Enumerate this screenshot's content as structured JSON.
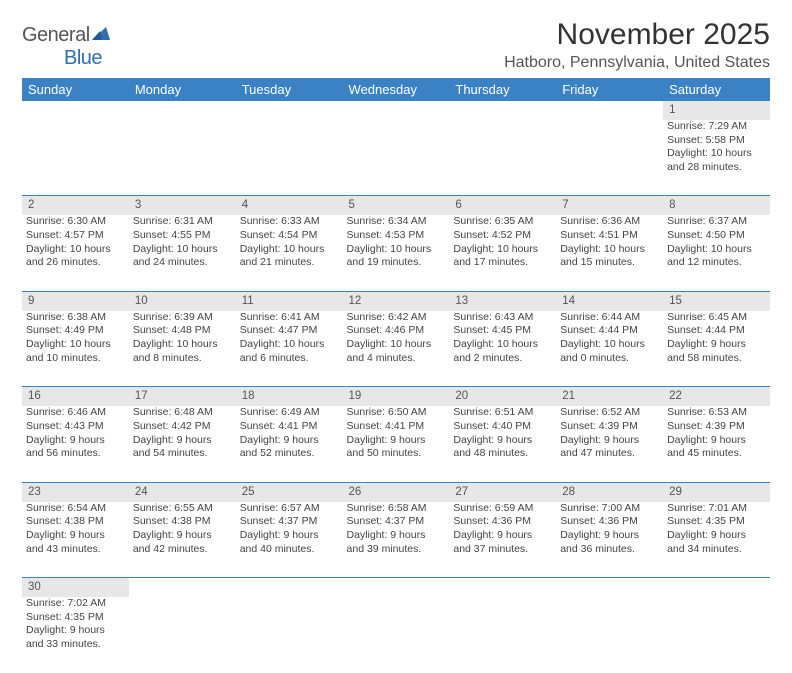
{
  "logo": {
    "text_general": "General",
    "text_blue": "Blue"
  },
  "title": "November 2025",
  "location": "Hatboro, Pennsylvania, United States",
  "colors": {
    "header_bg": "#3b82c4",
    "header_text": "#ffffff",
    "daynum_bg": "#e7e7e7",
    "row_divider": "#3b82c4",
    "body_text": "#444444",
    "title_text": "#333333",
    "location_text": "#555555",
    "logo_general": "#555555",
    "logo_blue": "#2f6fae",
    "page_bg": "#ffffff"
  },
  "calendar": {
    "day_headers": [
      "Sunday",
      "Monday",
      "Tuesday",
      "Wednesday",
      "Thursday",
      "Friday",
      "Saturday"
    ],
    "first_weekday_index": 6,
    "num_days": 30,
    "days": {
      "1": {
        "sunrise": "7:29 AM",
        "sunset": "5:58 PM",
        "daylight": "10 hours and 28 minutes."
      },
      "2": {
        "sunrise": "6:30 AM",
        "sunset": "4:57 PM",
        "daylight": "10 hours and 26 minutes."
      },
      "3": {
        "sunrise": "6:31 AM",
        "sunset": "4:55 PM",
        "daylight": "10 hours and 24 minutes."
      },
      "4": {
        "sunrise": "6:33 AM",
        "sunset": "4:54 PM",
        "daylight": "10 hours and 21 minutes."
      },
      "5": {
        "sunrise": "6:34 AM",
        "sunset": "4:53 PM",
        "daylight": "10 hours and 19 minutes."
      },
      "6": {
        "sunrise": "6:35 AM",
        "sunset": "4:52 PM",
        "daylight": "10 hours and 17 minutes."
      },
      "7": {
        "sunrise": "6:36 AM",
        "sunset": "4:51 PM",
        "daylight": "10 hours and 15 minutes."
      },
      "8": {
        "sunrise": "6:37 AM",
        "sunset": "4:50 PM",
        "daylight": "10 hours and 12 minutes."
      },
      "9": {
        "sunrise": "6:38 AM",
        "sunset": "4:49 PM",
        "daylight": "10 hours and 10 minutes."
      },
      "10": {
        "sunrise": "6:39 AM",
        "sunset": "4:48 PM",
        "daylight": "10 hours and 8 minutes."
      },
      "11": {
        "sunrise": "6:41 AM",
        "sunset": "4:47 PM",
        "daylight": "10 hours and 6 minutes."
      },
      "12": {
        "sunrise": "6:42 AM",
        "sunset": "4:46 PM",
        "daylight": "10 hours and 4 minutes."
      },
      "13": {
        "sunrise": "6:43 AM",
        "sunset": "4:45 PM",
        "daylight": "10 hours and 2 minutes."
      },
      "14": {
        "sunrise": "6:44 AM",
        "sunset": "4:44 PM",
        "daylight": "10 hours and 0 minutes."
      },
      "15": {
        "sunrise": "6:45 AM",
        "sunset": "4:44 PM",
        "daylight": "9 hours and 58 minutes."
      },
      "16": {
        "sunrise": "6:46 AM",
        "sunset": "4:43 PM",
        "daylight": "9 hours and 56 minutes."
      },
      "17": {
        "sunrise": "6:48 AM",
        "sunset": "4:42 PM",
        "daylight": "9 hours and 54 minutes."
      },
      "18": {
        "sunrise": "6:49 AM",
        "sunset": "4:41 PM",
        "daylight": "9 hours and 52 minutes."
      },
      "19": {
        "sunrise": "6:50 AM",
        "sunset": "4:41 PM",
        "daylight": "9 hours and 50 minutes."
      },
      "20": {
        "sunrise": "6:51 AM",
        "sunset": "4:40 PM",
        "daylight": "9 hours and 48 minutes."
      },
      "21": {
        "sunrise": "6:52 AM",
        "sunset": "4:39 PM",
        "daylight": "9 hours and 47 minutes."
      },
      "22": {
        "sunrise": "6:53 AM",
        "sunset": "4:39 PM",
        "daylight": "9 hours and 45 minutes."
      },
      "23": {
        "sunrise": "6:54 AM",
        "sunset": "4:38 PM",
        "daylight": "9 hours and 43 minutes."
      },
      "24": {
        "sunrise": "6:55 AM",
        "sunset": "4:38 PM",
        "daylight": "9 hours and 42 minutes."
      },
      "25": {
        "sunrise": "6:57 AM",
        "sunset": "4:37 PM",
        "daylight": "9 hours and 40 minutes."
      },
      "26": {
        "sunrise": "6:58 AM",
        "sunset": "4:37 PM",
        "daylight": "9 hours and 39 minutes."
      },
      "27": {
        "sunrise": "6:59 AM",
        "sunset": "4:36 PM",
        "daylight": "9 hours and 37 minutes."
      },
      "28": {
        "sunrise": "7:00 AM",
        "sunset": "4:36 PM",
        "daylight": "9 hours and 36 minutes."
      },
      "29": {
        "sunrise": "7:01 AM",
        "sunset": "4:35 PM",
        "daylight": "9 hours and 34 minutes."
      },
      "30": {
        "sunrise": "7:02 AM",
        "sunset": "4:35 PM",
        "daylight": "9 hours and 33 minutes."
      }
    },
    "labels": {
      "sunrise_prefix": "Sunrise: ",
      "sunset_prefix": "Sunset: ",
      "daylight_prefix": "Daylight: "
    }
  }
}
